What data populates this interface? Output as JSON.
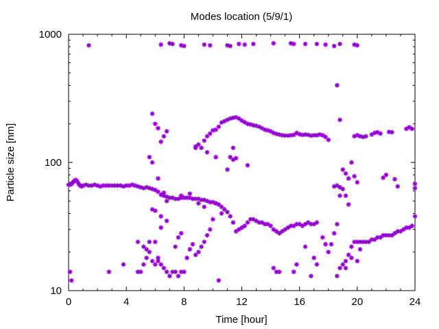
{
  "chart_data": {
    "type": "scatter",
    "title": "Modes location (5/9/1)",
    "xlabel": "Time [hour]",
    "ylabel": "Particle size [nm]",
    "xlim": [
      0,
      24
    ],
    "ylim": [
      10,
      1000
    ],
    "yscale": "log",
    "grid": false,
    "legend": "none",
    "marker_color": "#9400D3",
    "xticks": [
      0,
      4,
      8,
      12,
      16,
      20,
      24
    ],
    "xtick_labels": [
      "0",
      "4",
      "8",
      "12",
      "16",
      "20",
      "24"
    ],
    "yticks": [
      10,
      100,
      1000
    ],
    "ytick_labels": [
      "10",
      "100",
      "1000"
    ],
    "series": [
      {
        "points": [
          [
            0.0,
            67
          ],
          [
            0.1,
            67
          ],
          [
            0.2,
            68
          ],
          [
            0.3,
            70
          ],
          [
            0.4,
            72
          ],
          [
            0.5,
            73
          ],
          [
            0.6,
            71
          ],
          [
            0.7,
            68
          ],
          [
            0.8,
            66
          ],
          [
            0.9,
            65
          ],
          [
            1.0,
            66
          ],
          [
            1.2,
            67
          ],
          [
            1.4,
            66
          ],
          [
            1.6,
            66
          ],
          [
            1.8,
            67
          ],
          [
            2.0,
            66
          ],
          [
            2.2,
            65
          ],
          [
            2.4,
            66
          ],
          [
            2.6,
            66
          ],
          [
            2.8,
            66
          ],
          [
            3.0,
            66
          ],
          [
            3.2,
            66
          ],
          [
            3.4,
            66
          ],
          [
            3.6,
            66
          ],
          [
            3.8,
            65
          ],
          [
            4.0,
            66
          ],
          [
            4.2,
            66
          ],
          [
            4.4,
            67
          ],
          [
            4.6,
            66
          ],
          [
            4.8,
            65
          ],
          [
            5.0,
            64
          ],
          [
            5.2,
            63
          ],
          [
            5.4,
            64
          ],
          [
            5.6,
            63
          ],
          [
            5.8,
            62
          ],
          [
            6.0,
            61
          ],
          [
            6.2,
            59
          ],
          [
            6.4,
            56
          ],
          [
            6.6,
            55
          ],
          [
            6.8,
            54
          ],
          [
            7.0,
            53
          ],
          [
            7.2,
            53
          ],
          [
            7.4,
            52
          ],
          [
            7.6,
            52
          ],
          [
            7.8,
            53
          ],
          [
            8.0,
            53
          ],
          [
            8.2,
            53
          ],
          [
            8.4,
            53
          ],
          [
            8.6,
            52
          ],
          [
            8.8,
            52
          ],
          [
            9.0,
            52
          ],
          [
            9.2,
            51
          ],
          [
            9.4,
            51
          ],
          [
            9.6,
            50
          ],
          [
            9.8,
            49
          ],
          [
            10.0,
            49
          ],
          [
            10.2,
            48
          ],
          [
            10.4,
            47
          ],
          [
            10.6,
            45
          ],
          [
            10.8,
            43
          ],
          [
            11.0,
            41
          ],
          [
            11.2,
            38
          ],
          [
            11.4,
            34
          ],
          [
            11.6,
            29
          ],
          [
            11.8,
            30
          ],
          [
            12.0,
            31
          ],
          [
            12.2,
            32
          ],
          [
            12.4,
            34
          ],
          [
            12.6,
            36
          ],
          [
            12.8,
            36
          ],
          [
            13.0,
            35
          ],
          [
            13.2,
            34
          ],
          [
            13.4,
            34
          ],
          [
            13.6,
            33
          ],
          [
            13.8,
            33
          ],
          [
            14.0,
            32
          ],
          [
            14.2,
            30
          ],
          [
            14.4,
            29
          ],
          [
            14.6,
            28
          ],
          [
            14.8,
            29
          ],
          [
            15.0,
            30
          ],
          [
            15.2,
            31
          ],
          [
            15.4,
            32
          ],
          [
            15.6,
            32
          ],
          [
            15.8,
            33
          ],
          [
            16.0,
            33
          ],
          [
            16.2,
            32
          ],
          [
            16.4,
            33
          ],
          [
            16.6,
            34
          ],
          [
            16.8,
            33
          ],
          [
            17.0,
            33
          ],
          [
            17.2,
            34
          ],
          [
            17.6,
            26
          ],
          [
            17.8,
            23
          ],
          [
            18.0,
            20
          ],
          [
            18.2,
            23
          ],
          [
            18.4,
            28
          ],
          [
            18.6,
            33
          ],
          [
            19.0,
            16
          ],
          [
            19.2,
            17
          ],
          [
            19.4,
            19
          ],
          [
            19.6,
            22
          ],
          [
            19.8,
            24
          ],
          [
            20.0,
            24
          ],
          [
            20.2,
            24
          ],
          [
            20.4,
            24
          ],
          [
            20.6,
            24
          ],
          [
            20.8,
            24
          ],
          [
            21.0,
            25
          ],
          [
            21.2,
            25
          ],
          [
            21.4,
            26
          ],
          [
            21.6,
            26
          ],
          [
            21.8,
            27
          ],
          [
            22.0,
            27
          ],
          [
            22.2,
            27
          ],
          [
            22.4,
            27
          ],
          [
            22.6,
            28
          ],
          [
            22.8,
            29
          ],
          [
            23.0,
            29
          ],
          [
            23.2,
            30
          ],
          [
            23.4,
            31
          ],
          [
            23.6,
            31
          ],
          [
            23.8,
            32
          ],
          [
            24.0,
            38
          ],
          [
            8.8,
            133
          ],
          [
            9.0,
            138
          ],
          [
            9.2,
            130
          ],
          [
            9.4,
            148
          ],
          [
            9.6,
            160
          ],
          [
            9.8,
            168
          ],
          [
            10.0,
            178
          ],
          [
            10.2,
            180
          ],
          [
            10.4,
            190
          ],
          [
            10.6,
            205
          ],
          [
            10.8,
            210
          ],
          [
            11.0,
            215
          ],
          [
            11.2,
            220
          ],
          [
            11.4,
            223
          ],
          [
            11.6,
            225
          ],
          [
            11.8,
            220
          ],
          [
            12.0,
            212
          ],
          [
            12.2,
            206
          ],
          [
            12.4,
            200
          ],
          [
            12.6,
            198
          ],
          [
            12.8,
            195
          ],
          [
            13.0,
            193
          ],
          [
            13.2,
            190
          ],
          [
            13.4,
            185
          ],
          [
            13.6,
            180
          ],
          [
            13.8,
            178
          ],
          [
            14.0,
            175
          ],
          [
            14.2,
            170
          ],
          [
            14.4,
            167
          ],
          [
            14.6,
            165
          ],
          [
            14.8,
            163
          ],
          [
            15.0,
            162
          ],
          [
            15.2,
            162
          ],
          [
            15.4,
            163
          ],
          [
            15.6,
            164
          ],
          [
            15.8,
            170
          ],
          [
            16.0,
            166
          ],
          [
            16.2,
            164
          ],
          [
            16.4,
            165
          ],
          [
            16.6,
            164
          ],
          [
            16.8,
            162
          ],
          [
            17.0,
            163
          ],
          [
            17.2,
            163
          ],
          [
            17.4,
            165
          ],
          [
            17.6,
            163
          ],
          [
            17.8,
            158
          ],
          [
            18.0,
            150
          ],
          [
            19.8,
            160
          ],
          [
            20.0,
            163
          ],
          [
            20.2,
            160
          ],
          [
            20.4,
            158
          ],
          [
            20.6,
            160
          ],
          [
            21.0,
            165
          ],
          [
            21.2,
            170
          ],
          [
            21.4,
            172
          ],
          [
            21.6,
            168
          ],
          [
            22.2,
            173
          ],
          [
            22.4,
            172
          ],
          [
            23.4,
            183
          ],
          [
            23.6,
            188
          ],
          [
            23.8,
            183
          ],
          [
            18.4,
            65
          ],
          [
            18.6,
            66
          ],
          [
            18.8,
            64
          ],
          [
            19.0,
            88
          ],
          [
            19.2,
            82
          ],
          [
            19.4,
            75
          ],
          [
            19.6,
            100
          ],
          [
            19.8,
            78
          ],
          [
            20.0,
            70
          ],
          [
            19.0,
            62
          ],
          [
            18.8,
            55
          ],
          [
            19.2,
            55
          ],
          [
            19.4,
            47
          ],
          [
            21.8,
            76
          ],
          [
            22.0,
            80
          ],
          [
            22.6,
            74
          ],
          [
            22.8,
            65
          ],
          [
            24.0,
            68
          ],
          [
            24.0,
            63
          ],
          [
            0.1,
            14
          ],
          [
            0.2,
            12
          ],
          [
            1.4,
            820
          ],
          [
            2.8,
            14
          ],
          [
            3.8,
            16
          ],
          [
            4.8,
            14
          ],
          [
            5.0,
            14
          ],
          [
            5.2,
            16
          ],
          [
            5.4,
            18
          ],
          [
            5.6,
            20
          ],
          [
            5.8,
            17
          ],
          [
            6.0,
            16
          ],
          [
            6.2,
            18
          ],
          [
            6.4,
            16
          ],
          [
            6.6,
            15
          ],
          [
            6.8,
            14
          ],
          [
            7.0,
            13
          ],
          [
            7.2,
            14
          ],
          [
            7.4,
            14
          ],
          [
            7.6,
            13
          ],
          [
            7.8,
            14
          ],
          [
            8.0,
            14
          ],
          [
            4.8,
            24
          ],
          [
            5.2,
            22
          ],
          [
            5.4,
            21
          ],
          [
            5.6,
            24
          ],
          [
            6.0,
            24
          ],
          [
            6.2,
            17
          ],
          [
            6.4,
            31
          ],
          [
            6.8,
            35
          ],
          [
            7.4,
            22
          ],
          [
            7.6,
            26
          ],
          [
            7.8,
            28
          ],
          [
            8.2,
            18
          ],
          [
            8.4,
            21
          ],
          [
            8.6,
            23
          ],
          [
            8.8,
            19
          ],
          [
            9.0,
            20
          ],
          [
            9.2,
            22
          ],
          [
            9.4,
            24
          ],
          [
            9.6,
            27
          ],
          [
            9.8,
            30
          ],
          [
            10.0,
            36
          ],
          [
            10.2,
            48
          ],
          [
            10.6,
            40
          ],
          [
            10.4,
            12
          ],
          [
            5.8,
            240
          ],
          [
            6.0,
            200
          ],
          [
            6.2,
            185
          ],
          [
            6.4,
            145
          ],
          [
            6.6,
            160
          ],
          [
            6.8,
            175
          ],
          [
            5.6,
            110
          ],
          [
            5.8,
            100
          ],
          [
            6.2,
            75
          ],
          [
            6.6,
            58
          ],
          [
            6.8,
            50
          ],
          [
            5.8,
            43
          ],
          [
            6.0,
            42
          ],
          [
            6.4,
            38
          ],
          [
            8.8,
            130
          ],
          [
            9.6,
            120
          ],
          [
            10.2,
            110
          ],
          [
            11.0,
            88
          ],
          [
            11.2,
            110
          ],
          [
            11.4,
            105
          ],
          [
            11.6,
            108
          ],
          [
            12.4,
            95
          ],
          [
            11.4,
            130
          ],
          [
            7.8,
            55
          ],
          [
            8.4,
            57
          ],
          [
            9.0,
            48
          ],
          [
            9.4,
            45
          ],
          [
            14.2,
            15
          ],
          [
            14.4,
            14
          ],
          [
            14.6,
            14
          ],
          [
            15.6,
            14
          ],
          [
            15.8,
            16
          ],
          [
            16.8,
            13
          ],
          [
            17.2,
            16
          ],
          [
            17.0,
            18
          ],
          [
            16.4,
            22
          ],
          [
            18.6,
            13
          ],
          [
            18.8,
            15
          ],
          [
            19.2,
            15
          ],
          [
            19.6,
            18
          ],
          [
            20.0,
            17
          ],
          [
            20.2,
            21
          ],
          [
            6.4,
            830
          ],
          [
            7.0,
            850
          ],
          [
            7.2,
            840
          ],
          [
            7.8,
            820
          ],
          [
            8.0,
            810
          ],
          [
            9.4,
            830
          ],
          [
            9.8,
            820
          ],
          [
            11.0,
            820
          ],
          [
            11.2,
            810
          ],
          [
            11.8,
            840
          ],
          [
            12.2,
            830
          ],
          [
            12.8,
            840
          ],
          [
            14.2,
            850
          ],
          [
            15.4,
            850
          ],
          [
            15.6,
            840
          ],
          [
            16.4,
            840
          ],
          [
            17.2,
            840
          ],
          [
            17.8,
            830
          ],
          [
            18.4,
            810
          ],
          [
            18.8,
            840
          ],
          [
            19.8,
            830
          ],
          [
            20.0,
            820
          ],
          [
            18.6,
            400
          ],
          [
            18.8,
            215
          ]
        ]
      }
    ]
  }
}
